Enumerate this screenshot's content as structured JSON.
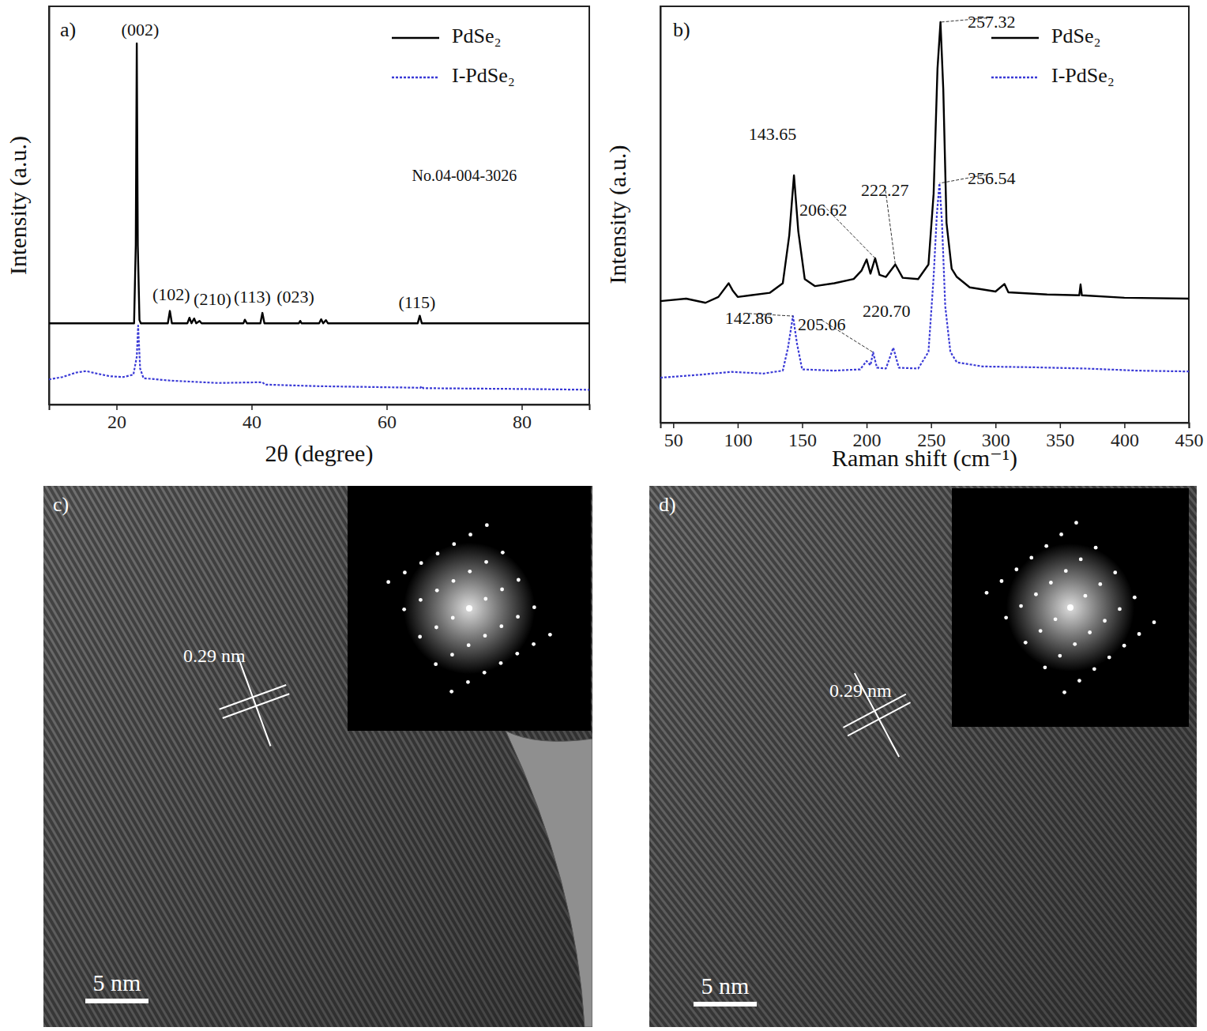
{
  "chart_data": [
    {
      "type": "line",
      "panel_label": "a)",
      "x_label": "2θ (degree)",
      "y_label": "Intensity (a.u.)",
      "xlim": [
        10,
        90
      ],
      "xticks": [
        20,
        40,
        60,
        80
      ],
      "ylim": [
        0,
        100
      ],
      "yticks": [],
      "tick_labels": "x",
      "legend": "upper right",
      "series": [
        {
          "name": "PdSe₂",
          "color": "#000000",
          "line_style": "solid",
          "x": [
            10,
            22.6,
            22.85,
            23.0,
            23.15,
            23.4,
            23.6,
            27.6,
            27.9,
            28.2,
            30.5,
            30.8,
            31.1,
            31.5,
            31.8,
            32.3,
            32.6,
            38.8,
            39.0,
            39.3,
            41.3,
            41.6,
            41.9,
            47.0,
            47.2,
            47.4,
            50.0,
            50.3,
            50.6,
            51.0,
            51.3,
            64.6,
            64.9,
            65.2,
            90
          ],
          "values": [
            20.4,
            20.4,
            40,
            90.7,
            40,
            21.2,
            20.4,
            20.4,
            23.5,
            20.4,
            20.4,
            21.8,
            20.4,
            21.6,
            20.4,
            21.0,
            20.4,
            20.4,
            21.3,
            20.4,
            20.4,
            23.0,
            20.4,
            20.4,
            21.0,
            20.4,
            20.4,
            21.4,
            20.4,
            21.2,
            20.4,
            20.4,
            22.3,
            20.4,
            20.4
          ]
        },
        {
          "name": "I-PdSe₂",
          "color": "#3a3ad6",
          "line_style": "dotted",
          "x": [
            10,
            12,
            14,
            15.5,
            17,
            19,
            21,
            22.5,
            23.0,
            23.2,
            23.5,
            24,
            28,
            35,
            41.6,
            42,
            50,
            65,
            65.2,
            65.4,
            80,
            90
          ],
          "values": [
            6.3,
            6.9,
            8.0,
            8.4,
            7.8,
            7.1,
            6.9,
            7.5,
            12,
            19.8,
            9,
            6.6,
            6.0,
            5.4,
            5.6,
            5.0,
            4.6,
            4.2,
            4.6,
            4.1,
            3.9,
            3.7
          ]
        }
      ],
      "annotations": [
        {
          "text": "(002)",
          "x": 23.5,
          "y": 93.7
        },
        {
          "text": "(102)",
          "x": 28.1,
          "y": 27.2
        },
        {
          "text": "(210)",
          "x": 34.2,
          "y": 26.0
        },
        {
          "text": "(113)",
          "x": 40.1,
          "y": 26.6
        },
        {
          "text": "(023)",
          "x": 46.5,
          "y": 26.6
        },
        {
          "text": "(115)",
          "x": 64.5,
          "y": 25.2
        },
        {
          "text": "No.04-004-3026",
          "x": 71.5,
          "y": 57.1
        }
      ]
    },
    {
      "type": "line",
      "panel_label": "b)",
      "x_label": "Raman shift (cm⁻¹)",
      "y_label": "Intensity (a.u.)",
      "xlim": [
        40,
        450
      ],
      "xticks": [
        50,
        100,
        150,
        200,
        250,
        300,
        350,
        400,
        450
      ],
      "ylim": [
        0,
        100
      ],
      "yticks": [],
      "tick_labels": "x",
      "legend": "upper right",
      "series": [
        {
          "name": "PdSe₂",
          "color": "#000000",
          "line_style": "solid",
          "x": [
            40,
            60,
            75,
            85,
            93,
            96,
            100,
            110,
            125,
            135,
            140,
            143.65,
            147,
            152,
            160,
            175,
            190,
            196,
            200,
            203,
            206.62,
            210,
            215,
            222.27,
            228,
            240,
            248,
            252,
            255,
            257.32,
            259.5,
            262,
            266,
            270,
            280,
            300,
            307,
            310,
            340,
            365,
            366,
            367,
            400,
            450
          ],
          "values": [
            29.2,
            29.8,
            28.8,
            30.2,
            33.5,
            31.8,
            30.2,
            30.6,
            31.2,
            33.5,
            45,
            59.4,
            46,
            34.5,
            32.8,
            33.5,
            34.5,
            36.5,
            39.2,
            35.8,
            39.5,
            35.5,
            35.0,
            38.0,
            34.8,
            34.5,
            38,
            55,
            85,
            96.2,
            80,
            48,
            37,
            35,
            32.5,
            31.5,
            33.3,
            31.3,
            30.8,
            30.6,
            33.2,
            30.6,
            30.0,
            29.8
          ]
        },
        {
          "name": "I-PdSe₂",
          "color": "#3a3ad6",
          "line_style": "dotted",
          "x": [
            40,
            70,
            95,
            120,
            135,
            139,
            142.86,
            146,
            150,
            175,
            195,
            200,
            203,
            205.06,
            208,
            215,
            220.7,
            225,
            240,
            248,
            252,
            254.5,
            256.54,
            258.5,
            261,
            265,
            270,
            290,
            330,
            370,
            410,
            450
          ],
          "values": [
            10.8,
            11.5,
            12.2,
            11.8,
            12.5,
            18,
            25.6,
            19,
            12.8,
            12.5,
            12.8,
            14.8,
            13.8,
            16.9,
            13.2,
            13,
            18,
            13.2,
            13,
            17,
            35,
            50,
            57.5,
            48,
            28,
            17,
            14.5,
            13.5,
            13.3,
            13.0,
            12.5,
            12.3
          ]
        }
      ],
      "annotations": [
        {
          "text": "257.32",
          "x": 297,
          "y": 95.8,
          "target": [
            257.32,
            96.2
          ]
        },
        {
          "text": "143.65",
          "x": 127.1,
          "y": 68.9
        },
        {
          "text": "206.62",
          "x": 166.4,
          "y": 50.7,
          "target": [
            206.62,
            39.5
          ]
        },
        {
          "text": "222.27",
          "x": 214.2,
          "y": 55.4,
          "target": [
            222.27,
            38.0
          ]
        },
        {
          "text": "256.54",
          "x": 297,
          "y": 58.3,
          "target": [
            256.54,
            57.5
          ]
        },
        {
          "text": "142.86",
          "x": 108.7,
          "y": 24.7,
          "target": [
            142.86,
            25.6
          ]
        },
        {
          "text": "205.06",
          "x": 165.2,
          "y": 23.1,
          "target": [
            205.06,
            16.9
          ]
        },
        {
          "text": "220.70",
          "x": 215.5,
          "y": 26.4
        }
      ]
    }
  ],
  "images": [
    {
      "label": "c)",
      "spacing_label": "0.29 nm",
      "scale_bar": "5 nm"
    },
    {
      "label": "d)",
      "spacing_label": "0.29 nm",
      "scale_bar": "5 nm"
    }
  ]
}
